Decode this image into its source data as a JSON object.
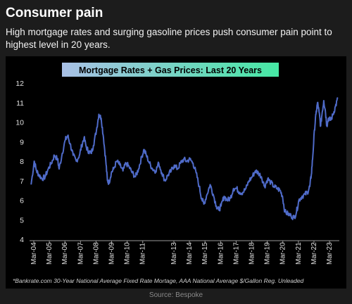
{
  "header": {
    "title": "Consumer pain",
    "subtitle": "High mortgage rates and surging gasoline prices push consumer pain point to highest level in 20 years."
  },
  "footer": {
    "source": "Source: Bespoke"
  },
  "colors": {
    "background": "#1c1c1c",
    "plot_background": "#000000",
    "line": "#4f6bc9",
    "title_banner_start": "#a9c0e6",
    "title_banner_end": "#46e8a4"
  },
  "chart_data": {
    "type": "line",
    "title": "Mortgage Rates + Gas Prices: Last 20 Years",
    "footnote": "*Bankrate.com 30-Year National Average Fixed Rate Mortage, AAA National Average $/Gallon Reg. Unleaded",
    "xlabel": "",
    "ylabel": "",
    "ylim": [
      4,
      12
    ],
    "yticks": [
      4,
      5,
      6,
      7,
      8,
      9,
      10,
      11,
      12
    ],
    "grid": false,
    "xticks": [
      {
        "label": "Mar-04",
        "t": 2004.17
      },
      {
        "label": "Mar-05",
        "t": 2005.17
      },
      {
        "label": "Mar-06",
        "t": 2006.17
      },
      {
        "label": "Mar-07",
        "t": 2007.17
      },
      {
        "label": "Mar-08",
        "t": 2008.17
      },
      {
        "label": "Mar-09",
        "t": 2009.17
      },
      {
        "label": "Mar-10",
        "t": 2010.17
      },
      {
        "label": "Mar-11",
        "t": 2011.17
      },
      {
        "label": "Mar-13",
        "t": 2013.17
      },
      {
        "label": "Mar-14",
        "t": 2014.17
      },
      {
        "label": "Mar-15",
        "t": 2015.17
      },
      {
        "label": "Mar-16",
        "t": 2016.17
      },
      {
        "label": "Mar-17",
        "t": 2017.17
      },
      {
        "label": "Mar-18",
        "t": 2018.17
      },
      {
        "label": "Mar-19",
        "t": 2019.17
      },
      {
        "label": "Mar-20",
        "t": 2020.17
      },
      {
        "label": "Mar-21",
        "t": 2021.17
      },
      {
        "label": "Mar-22",
        "t": 2022.17
      },
      {
        "label": "Mar-23",
        "t": 2023.17
      }
    ],
    "series": [
      {
        "points": [
          [
            2004.0,
            6.8
          ],
          [
            2004.2,
            8.0
          ],
          [
            2004.35,
            7.5
          ],
          [
            2004.5,
            7.3
          ],
          [
            2004.7,
            7.1
          ],
          [
            2004.9,
            7.2
          ],
          [
            2005.1,
            7.6
          ],
          [
            2005.3,
            7.9
          ],
          [
            2005.5,
            8.3
          ],
          [
            2005.7,
            8.1
          ],
          [
            2005.8,
            7.6
          ],
          [
            2006.0,
            8.4
          ],
          [
            2006.2,
            9.1
          ],
          [
            2006.35,
            9.3
          ],
          [
            2006.5,
            8.9
          ],
          [
            2006.7,
            8.3
          ],
          [
            2006.9,
            8.0
          ],
          [
            2007.1,
            8.3
          ],
          [
            2007.25,
            8.8
          ],
          [
            2007.4,
            9.2
          ],
          [
            2007.55,
            8.7
          ],
          [
            2007.7,
            8.5
          ],
          [
            2007.85,
            8.4
          ],
          [
            2008.0,
            8.8
          ],
          [
            2008.2,
            9.6
          ],
          [
            2008.35,
            10.4
          ],
          [
            2008.5,
            10.2
          ],
          [
            2008.65,
            9.2
          ],
          [
            2008.8,
            8.0
          ],
          [
            2008.9,
            7.0
          ],
          [
            2009.0,
            6.9
          ],
          [
            2009.15,
            7.4
          ],
          [
            2009.3,
            7.6
          ],
          [
            2009.5,
            8.0
          ],
          [
            2009.7,
            7.8
          ],
          [
            2009.9,
            7.5
          ],
          [
            2010.1,
            7.9
          ],
          [
            2010.3,
            7.7
          ],
          [
            2010.5,
            7.4
          ],
          [
            2010.7,
            7.2
          ],
          [
            2010.9,
            7.6
          ],
          [
            2011.1,
            8.2
          ],
          [
            2011.25,
            8.6
          ],
          [
            2011.4,
            8.3
          ],
          [
            2011.6,
            7.9
          ],
          [
            2011.8,
            7.6
          ],
          [
            2012.0,
            7.5
          ],
          [
            2012.2,
            7.9
          ],
          [
            2012.4,
            7.4
          ],
          [
            2012.6,
            7.0
          ],
          [
            2012.8,
            7.3
          ],
          [
            2013.0,
            7.5
          ],
          [
            2013.2,
            7.8
          ],
          [
            2013.4,
            7.6
          ],
          [
            2013.6,
            7.9
          ],
          [
            2013.8,
            8.1
          ],
          [
            2014.0,
            8.0
          ],
          [
            2014.2,
            8.1
          ],
          [
            2014.4,
            7.9
          ],
          [
            2014.6,
            7.4
          ],
          [
            2014.8,
            6.7
          ],
          [
            2014.95,
            6.1
          ],
          [
            2015.1,
            5.8
          ],
          [
            2015.3,
            6.3
          ],
          [
            2015.5,
            6.8
          ],
          [
            2015.7,
            6.3
          ],
          [
            2015.9,
            5.7
          ],
          [
            2016.05,
            5.5
          ],
          [
            2016.2,
            5.7
          ],
          [
            2016.4,
            6.2
          ],
          [
            2016.6,
            6.0
          ],
          [
            2016.8,
            6.1
          ],
          [
            2017.0,
            6.6
          ],
          [
            2017.2,
            6.6
          ],
          [
            2017.4,
            6.4
          ],
          [
            2017.6,
            6.4
          ],
          [
            2017.8,
            6.6
          ],
          [
            2018.0,
            7.0
          ],
          [
            2018.2,
            7.2
          ],
          [
            2018.4,
            7.5
          ],
          [
            2018.6,
            7.4
          ],
          [
            2018.8,
            7.2
          ],
          [
            2019.0,
            6.7
          ],
          [
            2019.2,
            7.1
          ],
          [
            2019.4,
            6.9
          ],
          [
            2019.6,
            6.7
          ],
          [
            2019.8,
            6.6
          ],
          [
            2020.0,
            6.5
          ],
          [
            2020.15,
            6.2
          ],
          [
            2020.3,
            5.4
          ],
          [
            2020.5,
            5.3
          ],
          [
            2020.7,
            5.2
          ],
          [
            2020.9,
            5.1
          ],
          [
            2021.05,
            5.4
          ],
          [
            2021.2,
            6.0
          ],
          [
            2021.4,
            6.2
          ],
          [
            2021.6,
            6.3
          ],
          [
            2021.75,
            6.4
          ],
          [
            2021.9,
            6.7
          ],
          [
            2022.0,
            7.3
          ],
          [
            2022.1,
            8.3
          ],
          [
            2022.2,
            9.6
          ],
          [
            2022.3,
            10.4
          ],
          [
            2022.4,
            11.0
          ],
          [
            2022.5,
            10.5
          ],
          [
            2022.6,
            9.8
          ],
          [
            2022.7,
            10.5
          ],
          [
            2022.8,
            11.1
          ],
          [
            2022.9,
            10.6
          ],
          [
            2023.0,
            9.8
          ],
          [
            2023.1,
            10.2
          ],
          [
            2023.25,
            10.1
          ],
          [
            2023.4,
            10.4
          ],
          [
            2023.55,
            10.8
          ],
          [
            2023.7,
            11.2
          ]
        ]
      }
    ]
  }
}
